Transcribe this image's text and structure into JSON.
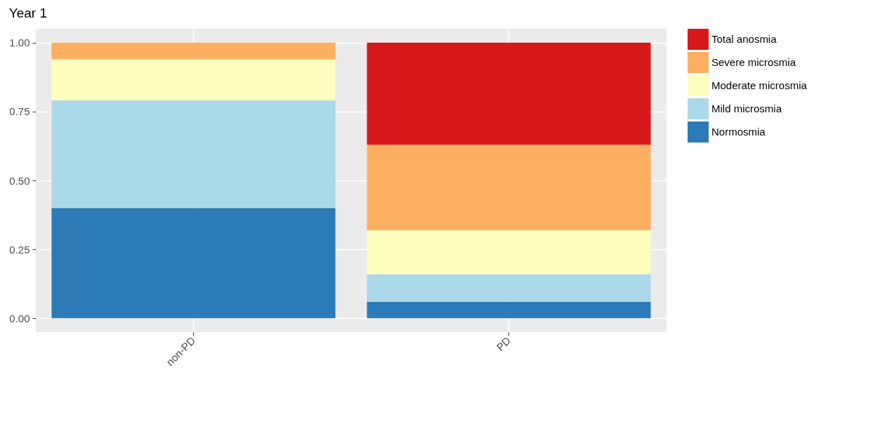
{
  "chart_data": {
    "type": "bar",
    "subtitle": "Year 1",
    "categories": [
      "non-PD",
      "PD"
    ],
    "series": [
      {
        "name": "Normosmia",
        "color": "#2c7bb6",
        "values": [
          0.4,
          0.06
        ]
      },
      {
        "name": "Mild microsmia",
        "color": "#abd9e9",
        "values": [
          0.39,
          0.1
        ]
      },
      {
        "name": "Moderate microsmia",
        "color": "#ffffbf",
        "values": [
          0.15,
          0.16
        ]
      },
      {
        "name": "Severe microsmia",
        "color": "#fdae61",
        "values": [
          0.06,
          0.31
        ]
      },
      {
        "name": "Total anosmia",
        "color": "#d7191c",
        "values": [
          0,
          0.37
        ]
      }
    ],
    "stacked": true,
    "ylim": [
      -0.05,
      1.05
    ],
    "yticks": [
      {
        "value": 0,
        "label": "0.00"
      },
      {
        "value": 0.25,
        "label": "0.25"
      },
      {
        "value": 0.5,
        "label": "0.50"
      },
      {
        "value": 0.75,
        "label": "0.75"
      },
      {
        "value": 1,
        "label": "1.00"
      }
    ],
    "grid": true,
    "legend": "right"
  }
}
